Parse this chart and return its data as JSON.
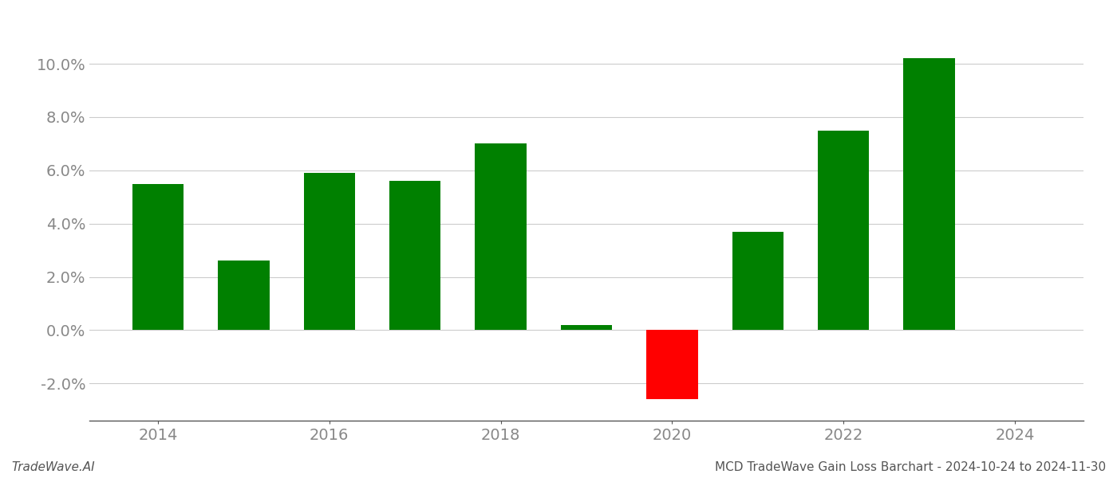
{
  "years": [
    2014,
    2015,
    2016,
    2017,
    2018,
    2019,
    2020,
    2021,
    2022,
    2023
  ],
  "values": [
    0.055,
    0.026,
    0.059,
    0.056,
    0.07,
    0.002,
    -0.026,
    0.037,
    0.075,
    0.102
  ],
  "colors": [
    "#008000",
    "#008000",
    "#008000",
    "#008000",
    "#008000",
    "#008000",
    "#ff0000",
    "#008000",
    "#008000",
    "#008000"
  ],
  "ylim": [
    -0.034,
    0.115
  ],
  "yticks": [
    -0.02,
    0.0,
    0.02,
    0.04,
    0.06,
    0.08,
    0.1
  ],
  "xticks": [
    2014,
    2016,
    2018,
    2020,
    2022,
    2024
  ],
  "xlabel": "",
  "ylabel": "",
  "title": "",
  "footer_left": "TradeWave.AI",
  "footer_right": "MCD TradeWave Gain Loss Barchart - 2024-10-24 to 2024-11-30",
  "background_color": "#ffffff",
  "bar_width": 0.6,
  "grid_color": "#cccccc",
  "axis_color": "#555555",
  "tick_color": "#888888",
  "footer_fontsize": 11,
  "tick_fontsize": 14
}
